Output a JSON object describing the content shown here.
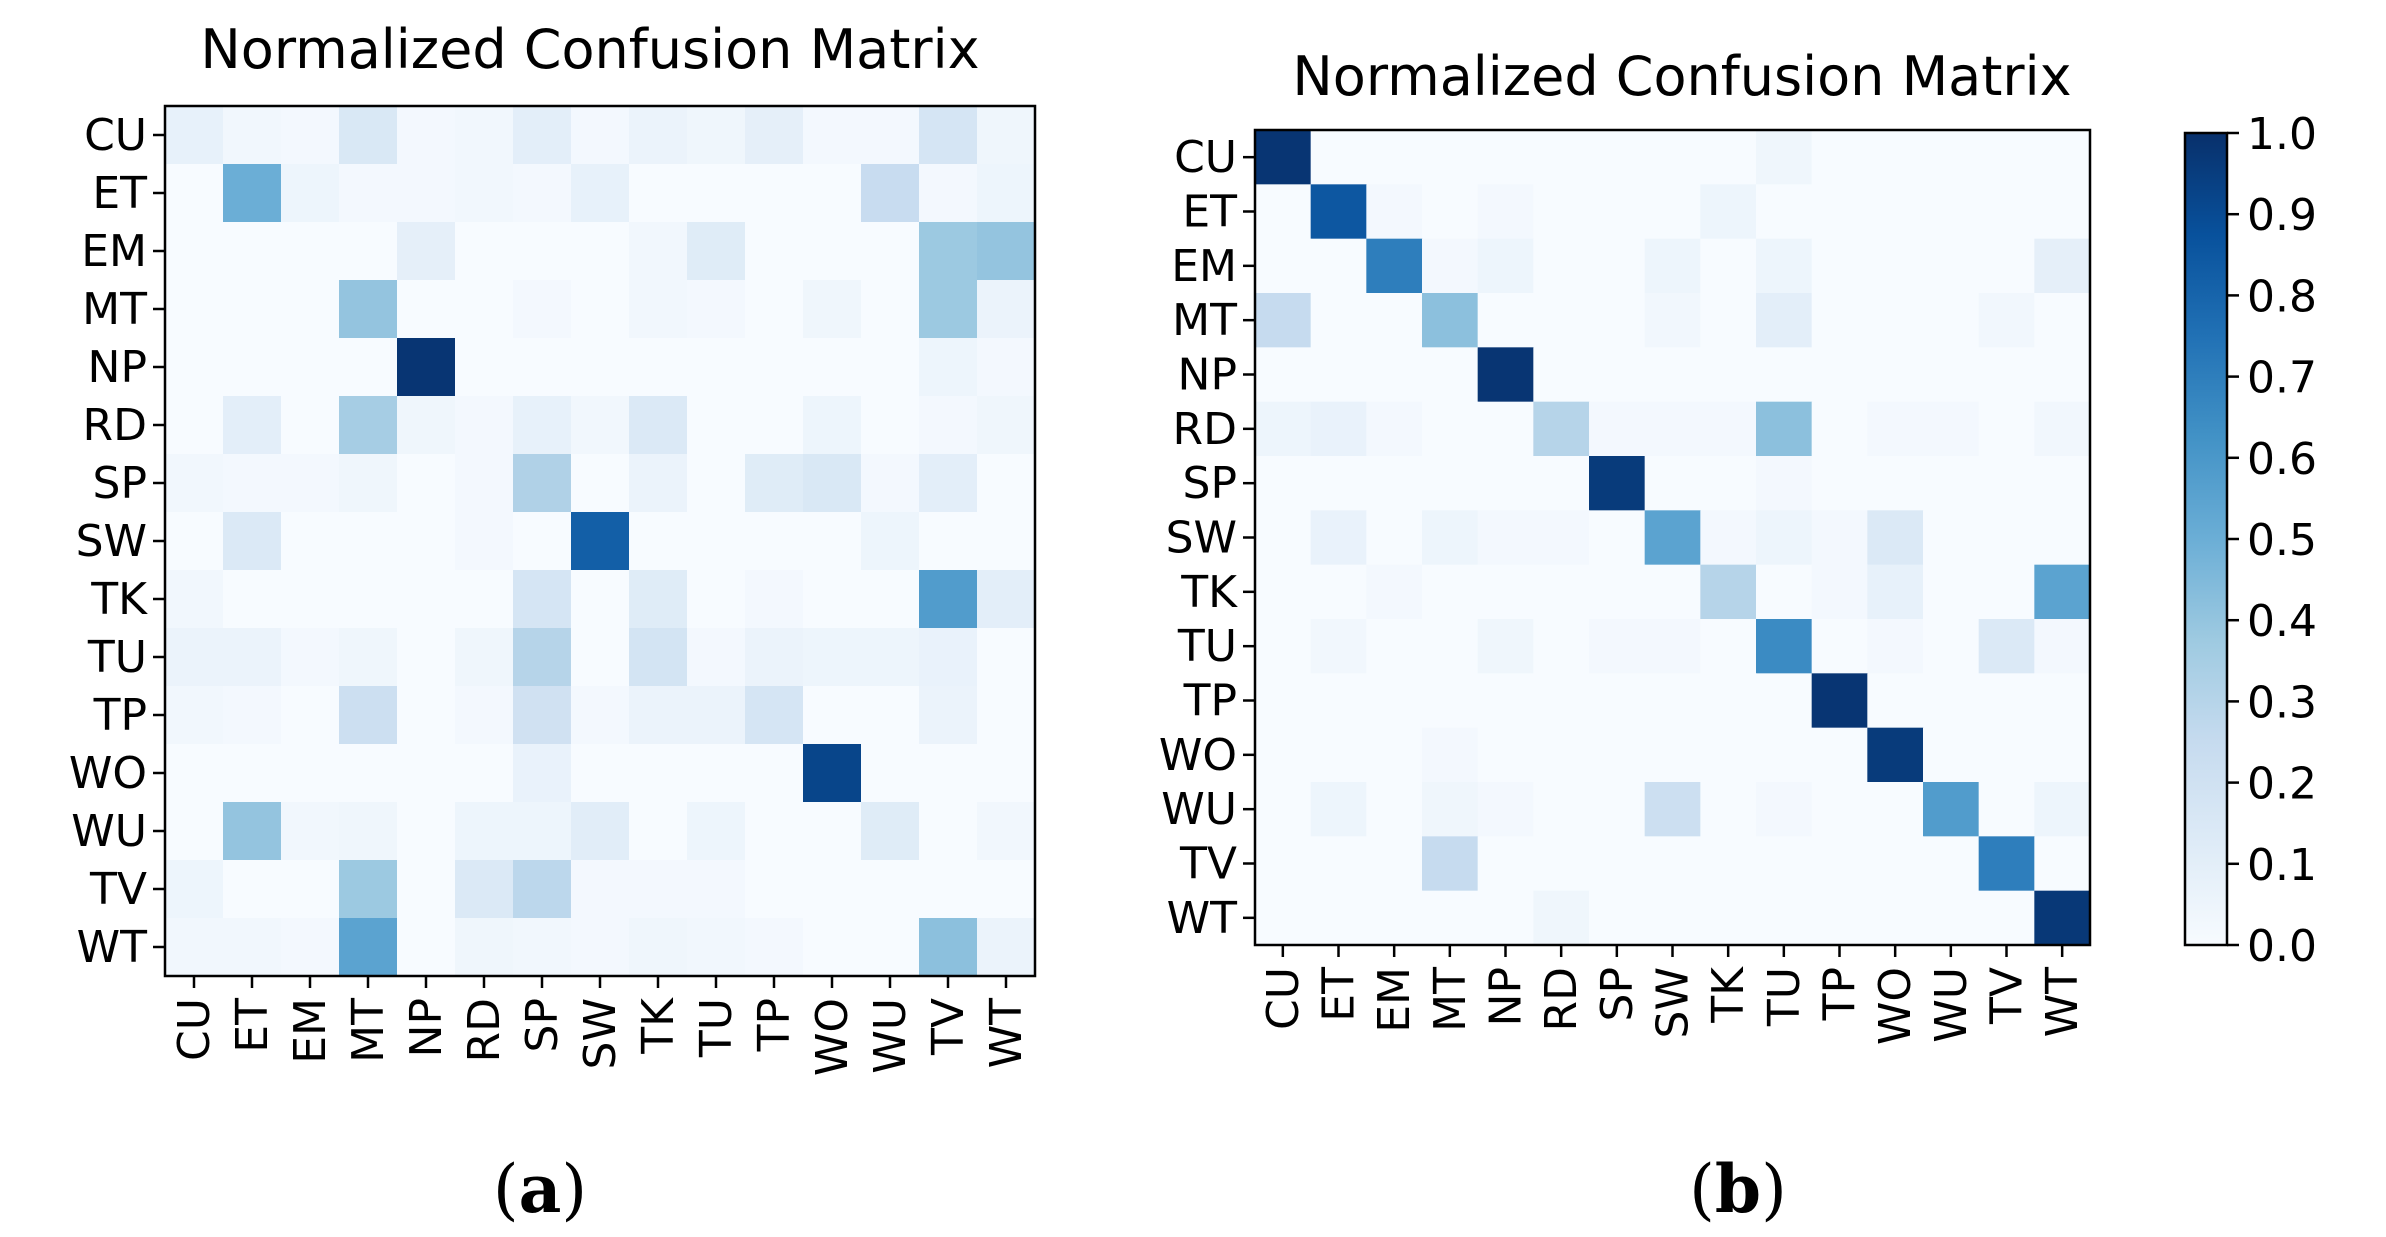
{
  "chart_data": [
    {
      "type": "heatmap",
      "title": "Normalized Confusion Matrix",
      "caption_open": "(",
      "caption_bold": "a",
      "caption_close": ")",
      "categories": [
        "CU",
        "ET",
        "EM",
        "MT",
        "NP",
        "RD",
        "SP",
        "SW",
        "TK",
        "TU",
        "TP",
        "WO",
        "WU",
        "TV",
        "WT"
      ],
      "xlabel": "",
      "ylabel": "",
      "zlim": [
        0,
        1
      ],
      "matrix": [
        [
          0.08,
          0.03,
          0.02,
          0.15,
          0.02,
          0.03,
          0.1,
          0.02,
          0.06,
          0.04,
          0.09,
          0.02,
          0.02,
          0.17,
          0.04
        ],
        [
          0.0,
          0.5,
          0.05,
          0.02,
          0.02,
          0.03,
          0.02,
          0.08,
          0.0,
          0.0,
          0.0,
          0.0,
          0.24,
          0.02,
          0.05
        ],
        [
          0.0,
          0.0,
          0.0,
          0.0,
          0.09,
          0.0,
          0.0,
          0.0,
          0.03,
          0.12,
          0.0,
          0.0,
          0.0,
          0.38,
          0.4
        ],
        [
          0.0,
          0.0,
          0.0,
          0.4,
          0.0,
          0.0,
          0.02,
          0.0,
          0.03,
          0.02,
          0.0,
          0.04,
          0.0,
          0.38,
          0.06
        ],
        [
          0.0,
          0.0,
          0.0,
          0.0,
          0.98,
          0.0,
          0.0,
          0.0,
          0.0,
          0.0,
          0.0,
          0.0,
          0.0,
          0.05,
          0.02
        ],
        [
          0.0,
          0.1,
          0.0,
          0.35,
          0.04,
          0.02,
          0.08,
          0.03,
          0.14,
          0.0,
          0.0,
          0.05,
          0.0,
          0.02,
          0.04
        ],
        [
          0.03,
          0.02,
          0.02,
          0.04,
          0.0,
          0.02,
          0.32,
          0.0,
          0.06,
          0.0,
          0.12,
          0.15,
          0.02,
          0.1,
          0.0
        ],
        [
          0.0,
          0.14,
          0.0,
          0.0,
          0.0,
          0.02,
          0.0,
          0.82,
          0.0,
          0.0,
          0.0,
          0.0,
          0.05,
          0.0,
          0.0
        ],
        [
          0.03,
          0.0,
          0.0,
          0.0,
          0.0,
          0.0,
          0.17,
          0.0,
          0.12,
          0.0,
          0.02,
          0.0,
          0.0,
          0.58,
          0.1
        ],
        [
          0.06,
          0.06,
          0.02,
          0.04,
          0.0,
          0.04,
          0.3,
          0.0,
          0.18,
          0.02,
          0.06,
          0.05,
          0.05,
          0.07,
          0.0
        ],
        [
          0.03,
          0.02,
          0.0,
          0.22,
          0.0,
          0.02,
          0.2,
          0.02,
          0.06,
          0.06,
          0.17,
          0.0,
          0.0,
          0.06,
          0.0
        ],
        [
          0.0,
          0.0,
          0.0,
          0.0,
          0.0,
          0.0,
          0.07,
          0.0,
          0.0,
          0.0,
          0.0,
          0.92,
          0.0,
          0.0,
          0.0
        ],
        [
          0.0,
          0.4,
          0.03,
          0.04,
          0.0,
          0.05,
          0.05,
          0.11,
          0.0,
          0.05,
          0.0,
          0.0,
          0.12,
          0.0,
          0.03
        ],
        [
          0.05,
          0.0,
          0.0,
          0.38,
          0.0,
          0.14,
          0.28,
          0.02,
          0.02,
          0.02,
          0.0,
          0.0,
          0.0,
          0.0,
          0.0
        ],
        [
          0.03,
          0.03,
          0.02,
          0.55,
          0.0,
          0.04,
          0.03,
          0.02,
          0.04,
          0.03,
          0.02,
          0.0,
          0.0,
          0.42,
          0.06
        ]
      ]
    },
    {
      "type": "heatmap",
      "title": "Normalized Confusion Matrix",
      "caption_open": "(",
      "caption_bold": "b",
      "caption_close": ")",
      "categories": [
        "CU",
        "ET",
        "EM",
        "MT",
        "NP",
        "RD",
        "SP",
        "SW",
        "TK",
        "TU",
        "TP",
        "WO",
        "WU",
        "TV",
        "WT"
      ],
      "xlabel": "",
      "ylabel": "",
      "zlim": [
        0,
        1
      ],
      "matrix": [
        [
          0.98,
          0.0,
          0.0,
          0.0,
          0.0,
          0.0,
          0.0,
          0.0,
          0.0,
          0.04,
          0.0,
          0.0,
          0.0,
          0.0,
          0.0
        ],
        [
          0.0,
          0.85,
          0.02,
          0.0,
          0.02,
          0.0,
          0.0,
          0.0,
          0.05,
          0.0,
          0.0,
          0.0,
          0.0,
          0.0,
          0.0
        ],
        [
          0.0,
          0.0,
          0.7,
          0.02,
          0.05,
          0.0,
          0.0,
          0.05,
          0.0,
          0.05,
          0.0,
          0.0,
          0.0,
          0.0,
          0.09
        ],
        [
          0.25,
          0.0,
          0.0,
          0.42,
          0.0,
          0.0,
          0.0,
          0.03,
          0.0,
          0.1,
          0.0,
          0.0,
          0.0,
          0.03,
          0.0
        ],
        [
          0.0,
          0.0,
          0.0,
          0.0,
          0.98,
          0.0,
          0.0,
          0.0,
          0.0,
          0.0,
          0.0,
          0.0,
          0.0,
          0.0,
          0.0
        ],
        [
          0.05,
          0.07,
          0.02,
          0.0,
          0.0,
          0.3,
          0.02,
          0.02,
          0.02,
          0.42,
          0.0,
          0.02,
          0.02,
          0.0,
          0.03
        ],
        [
          0.0,
          0.0,
          0.0,
          0.0,
          0.0,
          0.0,
          0.96,
          0.0,
          0.0,
          0.02,
          0.0,
          0.0,
          0.0,
          0.0,
          0.0
        ],
        [
          0.0,
          0.07,
          0.0,
          0.05,
          0.02,
          0.02,
          0.0,
          0.55,
          0.02,
          0.05,
          0.02,
          0.14,
          0.0,
          0.0,
          0.0
        ],
        [
          0.0,
          0.0,
          0.02,
          0.0,
          0.0,
          0.0,
          0.0,
          0.0,
          0.3,
          0.0,
          0.02,
          0.08,
          0.0,
          0.0,
          0.55
        ],
        [
          0.0,
          0.03,
          0.0,
          0.0,
          0.04,
          0.0,
          0.02,
          0.02,
          0.0,
          0.65,
          0.0,
          0.02,
          0.0,
          0.14,
          0.02
        ],
        [
          0.0,
          0.0,
          0.0,
          0.0,
          0.0,
          0.0,
          0.0,
          0.0,
          0.0,
          0.0,
          0.98,
          0.0,
          0.0,
          0.0,
          0.0
        ],
        [
          0.0,
          0.0,
          0.0,
          0.02,
          0.0,
          0.0,
          0.0,
          0.0,
          0.0,
          0.0,
          0.0,
          0.96,
          0.0,
          0.0,
          0.0
        ],
        [
          0.0,
          0.05,
          0.0,
          0.04,
          0.02,
          0.0,
          0.0,
          0.22,
          0.0,
          0.02,
          0.0,
          0.0,
          0.58,
          0.0,
          0.05
        ],
        [
          0.0,
          0.0,
          0.0,
          0.25,
          0.0,
          0.0,
          0.0,
          0.0,
          0.0,
          0.0,
          0.0,
          0.0,
          0.0,
          0.7,
          0.0
        ],
        [
          0.0,
          0.0,
          0.0,
          0.0,
          0.0,
          0.04,
          0.0,
          0.0,
          0.0,
          0.0,
          0.0,
          0.0,
          0.0,
          0.0,
          0.97
        ]
      ]
    }
  ],
  "colorbar": {
    "min": 0.0,
    "max": 1.0,
    "ticks": [
      "0.0",
      "0.1",
      "0.2",
      "0.3",
      "0.4",
      "0.5",
      "0.6",
      "0.7",
      "0.8",
      "0.9",
      "1.0"
    ],
    "colormap": "Blues",
    "colormap_stops": [
      "#f7fbff",
      "#deebf7",
      "#c6dbef",
      "#9ecae1",
      "#6baed6",
      "#4292c6",
      "#2171b5",
      "#08519c",
      "#08306b"
    ]
  }
}
